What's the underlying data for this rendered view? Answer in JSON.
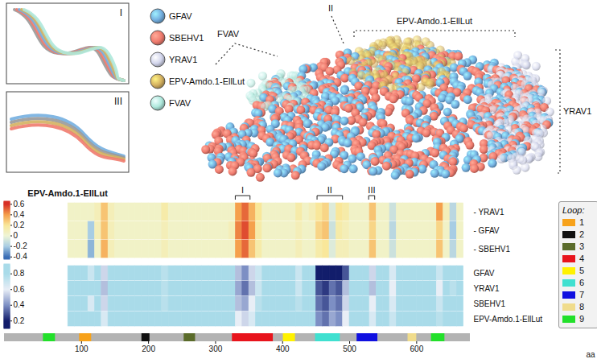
{
  "chart_data": [
    {
      "type": "heatmap",
      "title": "EPV-Amdo.1-EllLut",
      "xlim": [
        -15,
        680
      ],
      "bins": [
        80,
        90,
        100,
        110,
        120,
        130,
        140,
        150,
        160,
        170,
        180,
        190,
        200,
        210,
        220,
        230,
        240,
        250,
        260,
        270,
        280,
        290,
        300,
        310,
        320,
        330,
        340,
        350,
        360,
        370,
        380,
        390,
        400,
        410,
        420,
        430,
        440,
        450,
        460,
        470,
        480,
        490,
        500,
        510,
        520,
        530,
        540,
        550,
        560,
        570,
        580,
        590,
        600,
        610,
        620,
        630,
        640,
        650,
        660,
        670
      ],
      "rows": [
        {
          "name": "- YRAV1",
          "values": [
            0.05,
            0.05,
            0.05,
            0.05,
            0.1,
            0.3,
            0.1,
            0.05,
            0.05,
            0.05,
            0.05,
            0.05,
            0.05,
            0.05,
            0.15,
            0.05,
            0.05,
            0.05,
            0.05,
            0.05,
            0.05,
            0.05,
            0.05,
            0.05,
            0.05,
            0.4,
            0.5,
            0.35,
            0.2,
            0.05,
            0.05,
            0.05,
            0.05,
            0.05,
            0.15,
            0.05,
            0.1,
            0.2,
            0.25,
            -0.05,
            0.2,
            0.15,
            0.05,
            0.05,
            0.05,
            0.3,
            0.05,
            0.05,
            -0.1,
            0.05,
            0.05,
            0.05,
            0.05,
            0.05,
            0.05,
            0.4,
            0.1,
            -0.15,
            0.05
          ]
        },
        {
          "name": "- GFAV",
          "values": [
            0.05,
            0.05,
            0.05,
            -0.2,
            0.1,
            0.3,
            0.1,
            0.05,
            0.05,
            0.05,
            0.05,
            0.05,
            0.05,
            0.05,
            0.1,
            0.05,
            0.05,
            0.05,
            0.05,
            0.05,
            0.05,
            0.05,
            0.05,
            0.05,
            0.1,
            0.45,
            0.55,
            0.4,
            0.15,
            0.05,
            0.05,
            0.05,
            0.05,
            0.05,
            0.1,
            0.05,
            0.05,
            0.25,
            0.3,
            -0.1,
            0.15,
            0.1,
            0.05,
            0.05,
            0.05,
            0.25,
            0.05,
            0.05,
            -0.15,
            0.05,
            0.05,
            0.05,
            0.05,
            0.05,
            0.05,
            0.25,
            0.05,
            -0.2,
            0.05
          ]
        },
        {
          "name": "- SBEHV1",
          "values": [
            0.05,
            0.05,
            0.05,
            -0.25,
            0.05,
            0.35,
            0.1,
            0.05,
            0.05,
            0.05,
            0.05,
            0.05,
            0.05,
            0.05,
            0.1,
            0.05,
            0.05,
            0.05,
            0.05,
            0.05,
            0.05,
            0.05,
            0.05,
            0.05,
            0.05,
            0.4,
            0.5,
            0.3,
            0.15,
            0.05,
            0.05,
            0.05,
            0.05,
            0.05,
            0.1,
            0.05,
            0.05,
            0.15,
            0.2,
            -0.05,
            0.1,
            0.1,
            0.05,
            0.05,
            0.05,
            0.3,
            0.05,
            0.05,
            -0.1,
            0.05,
            0.05,
            0.05,
            0.05,
            0.05,
            0.05,
            0.3,
            0.05,
            -0.15,
            0.05
          ]
        }
      ],
      "colorbar": {
        "range": [
          -0.45,
          0.65
        ],
        "ticks": [
          -0.4,
          -0.2,
          0,
          0.2,
          0.4,
          0.6
        ],
        "colors": [
          "#3a6db5",
          "#a8cde4",
          "#eef5d6",
          "#f9e79a",
          "#f5a04c",
          "#d73027"
        ]
      },
      "regions": [
        {
          "label": "I",
          "start": 330,
          "end": 352
        },
        {
          "label": "II",
          "start": 452,
          "end": 490
        },
        {
          "label": "III",
          "start": 529,
          "end": 538
        }
      ]
    },
    {
      "type": "heatmap",
      "xlim": [
        -15,
        680
      ],
      "bins": [
        80,
        90,
        100,
        110,
        120,
        130,
        140,
        150,
        160,
        170,
        180,
        190,
        200,
        210,
        220,
        230,
        240,
        250,
        260,
        270,
        280,
        290,
        300,
        310,
        320,
        330,
        340,
        350,
        360,
        370,
        380,
        390,
        400,
        410,
        420,
        430,
        440,
        450,
        460,
        470,
        480,
        490,
        500,
        510,
        520,
        530,
        540,
        550,
        560,
        570,
        580,
        590,
        600,
        610,
        620,
        630,
        640,
        650,
        660,
        670
      ],
      "rows": [
        {
          "name": "GFAV",
          "values": [
            0.85,
            0.85,
            0.85,
            0.7,
            0.8,
            0.55,
            0.8,
            0.85,
            0.85,
            0.85,
            0.85,
            0.85,
            0.85,
            0.85,
            0.75,
            0.85,
            0.85,
            0.85,
            0.85,
            0.85,
            0.85,
            0.85,
            0.85,
            0.85,
            0.85,
            0.5,
            0.4,
            0.55,
            0.7,
            0.85,
            0.85,
            0.85,
            0.85,
            0.85,
            0.7,
            0.85,
            0.8,
            0.15,
            0.1,
            0.2,
            0.15,
            0.3,
            0.8,
            0.85,
            0.85,
            0.55,
            0.85,
            0.85,
            0.65,
            0.85,
            0.85,
            0.85,
            0.85,
            0.85,
            0.85,
            0.7,
            0.85,
            0.8,
            0.85
          ]
        },
        {
          "name": "YRAV1",
          "values": [
            0.85,
            0.85,
            0.85,
            0.8,
            0.8,
            0.5,
            0.8,
            0.85,
            0.85,
            0.85,
            0.85,
            0.85,
            0.85,
            0.85,
            0.75,
            0.85,
            0.85,
            0.85,
            0.85,
            0.85,
            0.85,
            0.85,
            0.85,
            0.85,
            0.85,
            0.45,
            0.35,
            0.5,
            0.7,
            0.85,
            0.85,
            0.85,
            0.85,
            0.85,
            0.7,
            0.85,
            0.8,
            0.3,
            0.25,
            0.35,
            0.3,
            0.5,
            0.8,
            0.85,
            0.85,
            0.5,
            0.85,
            0.85,
            0.6,
            0.85,
            0.85,
            0.85,
            0.85,
            0.85,
            0.85,
            0.6,
            0.85,
            0.75,
            0.85
          ]
        },
        {
          "name": "SBEHV1",
          "values": [
            0.85,
            0.85,
            0.85,
            0.65,
            0.8,
            0.55,
            0.8,
            0.85,
            0.85,
            0.85,
            0.85,
            0.85,
            0.85,
            0.85,
            0.75,
            0.85,
            0.85,
            0.85,
            0.85,
            0.85,
            0.85,
            0.85,
            0.85,
            0.85,
            0.85,
            0.5,
            0.45,
            0.6,
            0.75,
            0.85,
            0.85,
            0.85,
            0.85,
            0.85,
            0.75,
            0.85,
            0.8,
            0.35,
            0.3,
            0.4,
            0.35,
            0.55,
            0.8,
            0.85,
            0.85,
            0.6,
            0.85,
            0.85,
            0.65,
            0.85,
            0.85,
            0.85,
            0.85,
            0.85,
            0.85,
            0.7,
            0.85,
            0.8,
            0.85
          ]
        },
        {
          "name": "EPV-Amdo.1-EllLut",
          "values": [
            0.85,
            0.85,
            0.85,
            0.8,
            0.85,
            0.65,
            0.85,
            0.85,
            0.85,
            0.85,
            0.85,
            0.85,
            0.85,
            0.85,
            0.8,
            0.85,
            0.85,
            0.85,
            0.85,
            0.85,
            0.85,
            0.85,
            0.85,
            0.85,
            0.85,
            0.6,
            0.55,
            0.65,
            0.8,
            0.85,
            0.85,
            0.85,
            0.85,
            0.85,
            0.8,
            0.85,
            0.85,
            0.4,
            0.35,
            0.45,
            0.4,
            0.6,
            0.85,
            0.85,
            0.85,
            0.65,
            0.85,
            0.85,
            0.7,
            0.85,
            0.85,
            0.85,
            0.85,
            0.85,
            0.85,
            0.75,
            0.85,
            0.85,
            0.85
          ]
        }
      ],
      "colorbar": {
        "range": [
          0.1,
          0.92
        ],
        "ticks": [
          0.2,
          0.4,
          0.6,
          0.8
        ],
        "colors": [
          "#121d6b",
          "#7d8fc4",
          "#e8eef6",
          "#a9dbe9"
        ]
      }
    },
    {
      "type": "track",
      "xlim": [
        -15,
        680
      ],
      "xticks": [
        100,
        200,
        300,
        400,
        500,
        600
      ],
      "xlabel": "aa",
      "color": "#b3b3b3",
      "legend": "right",
      "legend_title": "Loop:",
      "loops": [
        {
          "name": "1",
          "color": "#f7a21b"
        },
        {
          "name": "2",
          "color": "#111111"
        },
        {
          "name": "3",
          "color": "#5a6b2a"
        },
        {
          "name": "4",
          "color": "#e8141c"
        },
        {
          "name": "5",
          "color": "#fff200"
        },
        {
          "name": "6",
          "color": "#40e0d0"
        },
        {
          "name": "7",
          "color": "#1010e0"
        },
        {
          "name": "8",
          "color": "#f0dc8c"
        },
        {
          "name": "9",
          "color": "#22e02a"
        }
      ],
      "segments": [
        {
          "loop": "9",
          "start": 43,
          "end": 61
        },
        {
          "loop": "1",
          "start": 97,
          "end": 115
        },
        {
          "loop": "2",
          "start": 190,
          "end": 202
        },
        {
          "loop": "3",
          "start": 253,
          "end": 270
        },
        {
          "loop": "4",
          "start": 325,
          "end": 386
        },
        {
          "loop": "5",
          "start": 401,
          "end": 419
        },
        {
          "loop": "6",
          "start": 449,
          "end": 486
        },
        {
          "loop": "7",
          "start": 511,
          "end": 542
        },
        {
          "loop": "8",
          "start": 587,
          "end": 600
        },
        {
          "loop": "9",
          "start": 622,
          "end": 642
        }
      ]
    }
  ],
  "structure_panel": {
    "insets": [
      "I",
      "III"
    ],
    "legend": [
      {
        "name": "GFAV",
        "color": "#74afe0"
      },
      {
        "name": "SBEHV1",
        "color": "#ef7b6e"
      },
      {
        "name": "YRAV1",
        "color": "#d2d5ec"
      },
      {
        "name": "EPV-Amdo.1-EllLut",
        "color": "#d4b160"
      },
      {
        "name": "FVAV",
        "color": "#aee8dc"
      }
    ],
    "labels": [
      "FVAV",
      "II",
      "EPV-Amdo.1-EllLut",
      "YRAV1"
    ]
  }
}
